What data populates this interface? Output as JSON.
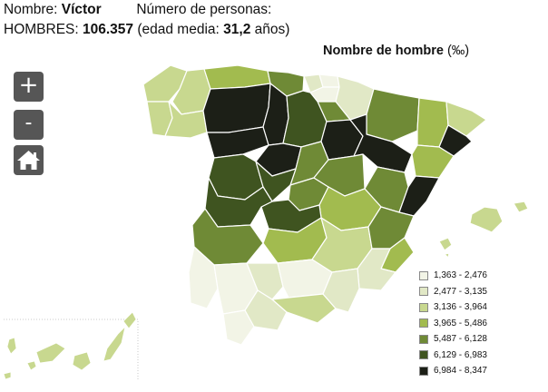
{
  "header": {
    "name_label": "Nombre:",
    "name_value": "Víctor",
    "persons_label": "Número de personas:",
    "men_label": "HOMBRES:",
    "men_value": "106.357",
    "age_prefix": "(edad media:",
    "age_value": "31,2",
    "age_suffix": "años)"
  },
  "map_title": {
    "text": "Nombre de hombre",
    "unit": "(‰)"
  },
  "controls": {
    "zoom_in": "+",
    "zoom_out": "-",
    "home_icon": "home-icon"
  },
  "legend": [
    {
      "range": "1,363 - 2,476",
      "color": "#f2f4e6"
    },
    {
      "range": "2,477 - 3,135",
      "color": "#e1e8c6"
    },
    {
      "range": "3,136 - 3,964",
      "color": "#c8d88f"
    },
    {
      "range": "3,965 - 5,486",
      "color": "#a2bb4f"
    },
    {
      "range": "5,487 - 6,128",
      "color": "#6f8a36"
    },
    {
      "range": "6,129 - 6,983",
      "color": "#3f5420"
    },
    {
      "range": "6,984 - 8,347",
      "color": "#1c1f17"
    }
  ],
  "colors": {
    "border": "#ffffff",
    "button_bg": "#565656",
    "inset_frame": "#c9c9c9"
  }
}
